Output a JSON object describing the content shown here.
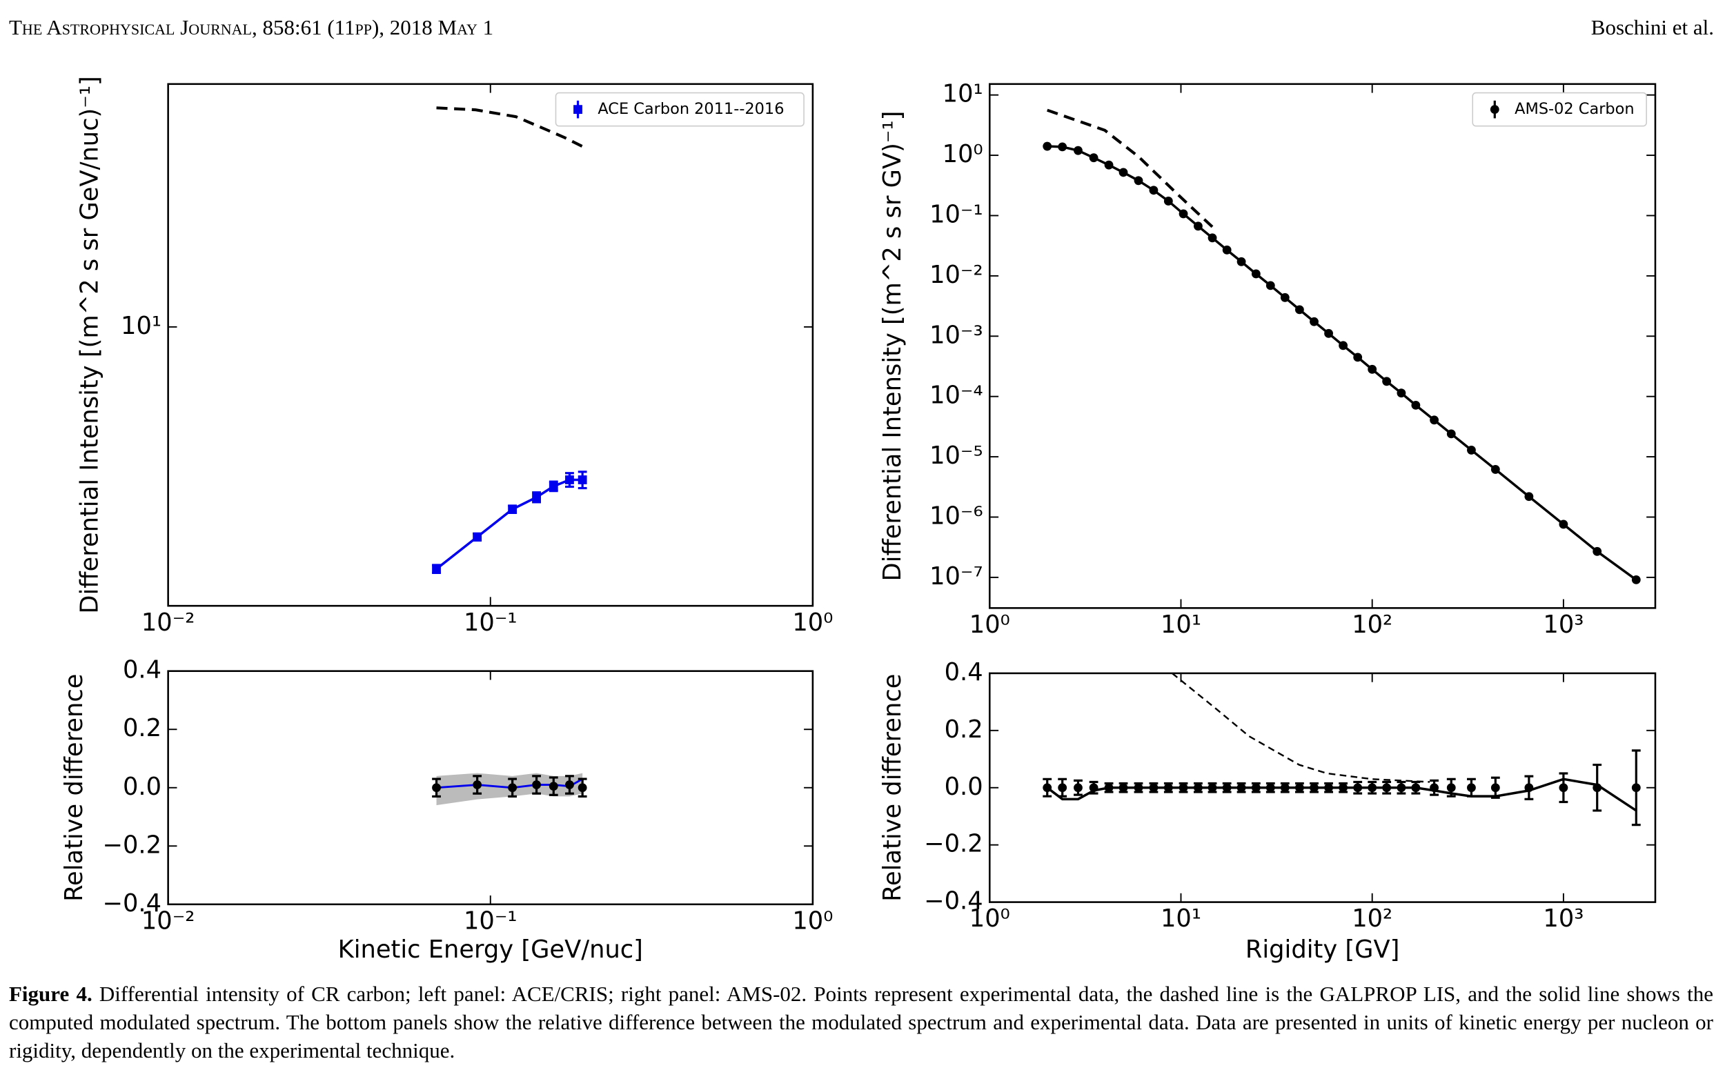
{
  "header": {
    "journal": "The Astrophysical Journal, 858:61 (11pp), 2018 May 1",
    "author": "Boschini et al."
  },
  "chart_data": [
    {
      "type": "line",
      "xscale": "log",
      "yscale": "log",
      "ylabel": "Differential Intensity [(m^2 s sr GeV/nuc)⁻¹]",
      "xlim": [
        0.01,
        1
      ],
      "xticks": [
        {
          "value": 0.01,
          "label": "10⁻²"
        },
        {
          "value": 0.1,
          "label": "10⁻¹"
        },
        {
          "value": 1,
          "label": "10⁰"
        }
      ],
      "ylim": [
        3.13,
        27.5
      ],
      "yticks": [
        {
          "value": 10,
          "label": "10¹"
        }
      ],
      "legend": "upper right",
      "series": [
        {
          "style": "dashed",
          "color": "#000000",
          "x": [
            0.068,
            0.09,
            0.12,
            0.145,
            0.17,
            0.193
          ],
          "values": [
            24.9,
            24.7,
            24.0,
            22.9,
            22.0,
            21.2
          ]
        },
        {
          "name": "ACE Carbon 2011--2016",
          "style": "line-markers",
          "marker": "square",
          "color": "#0000ee",
          "x": [
            0.068,
            0.091,
            0.117,
            0.139,
            0.157,
            0.176,
            0.193
          ],
          "values": [
            3.65,
            4.17,
            4.68,
            4.92,
            5.15,
            5.29,
            5.29
          ],
          "errors": [
            0.06,
            0.06,
            0.07,
            0.1,
            0.1,
            0.15,
            0.18
          ]
        }
      ]
    },
    {
      "type": "line",
      "xscale": "log",
      "xlabel": "Kinetic Energy [GeV/nuc]",
      "ylabel": "Relative difference",
      "xlim": [
        0.01,
        1
      ],
      "xticks": [
        {
          "value": 0.01,
          "label": "10⁻²"
        },
        {
          "value": 0.1,
          "label": "10⁻¹"
        },
        {
          "value": 1,
          "label": "10⁰"
        }
      ],
      "ylim": [
        -0.4,
        0.4
      ],
      "yticks": [
        {
          "value": -0.4,
          "label": "−0.4"
        },
        {
          "value": -0.2,
          "label": "−0.2"
        },
        {
          "value": 0,
          "label": "0.0"
        },
        0.2,
        0.4
      ],
      "series": [
        {
          "style": "band",
          "color": "#bbbbbb",
          "x": [
            0.068,
            0.091,
            0.117,
            0.139,
            0.157,
            0.176,
            0.193
          ],
          "upper": [
            0.04,
            0.05,
            0.04,
            0.05,
            0.04,
            0.04,
            0.05
          ],
          "lower": [
            -0.06,
            -0.04,
            -0.03,
            -0.02,
            -0.03,
            -0.03,
            -0.02
          ]
        },
        {
          "style": "line",
          "color": "#0000ee",
          "x": [
            0.068,
            0.091,
            0.117,
            0.139,
            0.157,
            0.176,
            0.193
          ],
          "values": [
            0,
            0.01,
            0,
            0.01,
            0.01,
            0.005,
            0.03
          ]
        },
        {
          "style": "markers",
          "marker": "circle",
          "color": "#000000",
          "x": [
            0.068,
            0.091,
            0.117,
            0.139,
            0.157,
            0.176,
            0.193
          ],
          "values": [
            0,
            0.01,
            0,
            0.01,
            0.005,
            0.01,
            0
          ],
          "errors": [
            0.03,
            0.03,
            0.03,
            0.03,
            0.03,
            0.03,
            0.03
          ]
        }
      ]
    },
    {
      "type": "line",
      "xscale": "log",
      "yscale": "log",
      "ylabel": "Differential Intensity  [(m^2 s sr GV)⁻¹]",
      "xlim": [
        1,
        3020
      ],
      "xticks": [
        {
          "value": 1,
          "label": "10⁰"
        },
        {
          "value": 10,
          "label": "10¹"
        },
        {
          "value": 100,
          "label": "10²"
        },
        {
          "value": 1000,
          "label": "10³"
        }
      ],
      "ylim": [
        3.1e-08,
        15.2
      ],
      "yticks": [
        {
          "value": 10,
          "label": "10¹"
        },
        {
          "value": 1,
          "label": "10⁰"
        },
        {
          "value": 0.1,
          "label": "10⁻¹"
        },
        {
          "value": 0.01,
          "label": "10⁻²"
        },
        {
          "value": 0.001,
          "label": "10⁻³"
        },
        {
          "value": 0.0001,
          "label": "10⁻⁴"
        },
        {
          "value": 1e-05,
          "label": "10⁻⁵"
        },
        {
          "value": 1e-06,
          "label": "10⁻⁶"
        },
        {
          "value": 1e-07,
          "label": "10⁻⁷"
        }
      ],
      "legend": "upper right",
      "series": [
        {
          "style": "dashed",
          "color": "#000000",
          "x": [
            2,
            4,
            6,
            10,
            15
          ],
          "values": [
            5.6,
            2.6,
            0.95,
            0.2,
            0.06
          ]
        },
        {
          "name": "AMS-02 Carbon",
          "style": "line-markers",
          "marker": "circle",
          "color": "#000000",
          "x": [
            2.0,
            2.4,
            2.9,
            3.5,
            4.2,
            5.0,
            6.0,
            7.2,
            8.6,
            10.3,
            12.3,
            14.6,
            17.4,
            20.7,
            24.7,
            29.4,
            35.0,
            41.7,
            49.7,
            59.2,
            70.5,
            84.0,
            100,
            119,
            142,
            169,
            211,
            259,
            330,
            441,
            660,
            1000,
            1500,
            2400
          ],
          "values": [
            1.41,
            1.38,
            1.2,
            0.91,
            0.69,
            0.52,
            0.38,
            0.263,
            0.174,
            0.107,
            0.0668,
            0.0427,
            0.0269,
            0.0172,
            0.0108,
            0.00692,
            0.00437,
            0.00275,
            0.00174,
            0.00111,
            0.0007,
            0.000447,
            0.000282,
            0.000178,
            0.000114,
            7.16e-05,
            4.07e-05,
            2.4e-05,
            1.29e-05,
            6.17e-06,
            2.19e-06,
            7.59e-07,
            2.69e-07,
            9.12e-08
          ]
        }
      ]
    },
    {
      "type": "line",
      "xscale": "log",
      "xlabel": "Rigidity [GV]",
      "ylabel": "Relative difference",
      "xlim": [
        1,
        3020
      ],
      "xticks": [
        {
          "value": 1,
          "label": "10⁰"
        },
        {
          "value": 10,
          "label": "10¹"
        },
        {
          "value": 100,
          "label": "10²"
        },
        {
          "value": 1000,
          "label": "10³"
        }
      ],
      "ylim": [
        -0.4,
        0.4
      ],
      "yticks": [
        {
          "value": -0.4,
          "label": "−0.4"
        },
        {
          "value": -0.2,
          "label": "−0.2"
        },
        {
          "value": 0,
          "label": "0.0"
        },
        0.2,
        0.4
      ],
      "series": [
        {
          "style": "dashed-thin",
          "color": "#000000",
          "x": [
            9,
            15,
            22.7,
            41.5,
            58,
            100,
            200
          ],
          "values": [
            0.4,
            0.28,
            0.18,
            0.08,
            0.05,
            0.03,
            0.02
          ]
        },
        {
          "style": "markers",
          "marker": "circle",
          "color": "#000000",
          "x": [
            2.0,
            2.4,
            2.9,
            3.5,
            4.2,
            5.0,
            6.0,
            7.2,
            8.6,
            10.3,
            12.3,
            14.6,
            17.4,
            20.7,
            24.7,
            29.4,
            35.0,
            41.7,
            49.7,
            59.2,
            70.5,
            84.0,
            100,
            119,
            142,
            169,
            211,
            259,
            330,
            441,
            660,
            1000,
            1500,
            2400
          ],
          "values": [
            0,
            0,
            0,
            0,
            0,
            0,
            0,
            0,
            0,
            0,
            0,
            0,
            0,
            0,
            0,
            0,
            0,
            0,
            0,
            0,
            0,
            0,
            0,
            0,
            0,
            0,
            0,
            0,
            0,
            0,
            0,
            0,
            0,
            0
          ],
          "errors": [
            0.03,
            0.03,
            0.025,
            0.02,
            0.015,
            0.015,
            0.015,
            0.015,
            0.015,
            0.015,
            0.015,
            0.015,
            0.015,
            0.015,
            0.015,
            0.015,
            0.015,
            0.015,
            0.015,
            0.015,
            0.015,
            0.02,
            0.02,
            0.02,
            0.02,
            0.02,
            0.025,
            0.03,
            0.03,
            0.035,
            0.04,
            0.05,
            0.08,
            0.13
          ]
        },
        {
          "style": "line-thick",
          "color": "#000000",
          "x": [
            2.0,
            2.4,
            2.9,
            3.5,
            4.2,
            5.0,
            6.0,
            7.2,
            8.6,
            10.3,
            12.3,
            14.6,
            17.4,
            20.7,
            24.7,
            29.4,
            35.0,
            41.7,
            49.7,
            59.2,
            70.5,
            84.0,
            100,
            119,
            142,
            169,
            211,
            259,
            330,
            441,
            660,
            1000,
            1500,
            2400
          ],
          "values": [
            0,
            -0.04,
            -0.04,
            -0.01,
            0,
            0,
            0,
            0,
            0,
            0,
            0,
            0,
            0,
            0,
            0,
            0,
            0,
            0,
            0,
            0,
            0,
            0,
            0,
            0,
            0,
            0,
            -0.01,
            -0.02,
            -0.03,
            -0.03,
            -0.01,
            0.03,
            0.01,
            -0.08
          ]
        }
      ]
    }
  ],
  "caption": {
    "label": "Figure 4.",
    "text": " Differential intensity of CR carbon; left panel: ACE/CRIS; right panel: AMS-02. Points represent experimental data, the dashed line is the GALPROP LIS, and the solid line shows the computed modulated spectrum. The bottom panels show the relative difference between the modulated spectrum and experimental data. Data are presented in units of kinetic energy per nucleon or rigidity, dependently on the experimental technique."
  }
}
